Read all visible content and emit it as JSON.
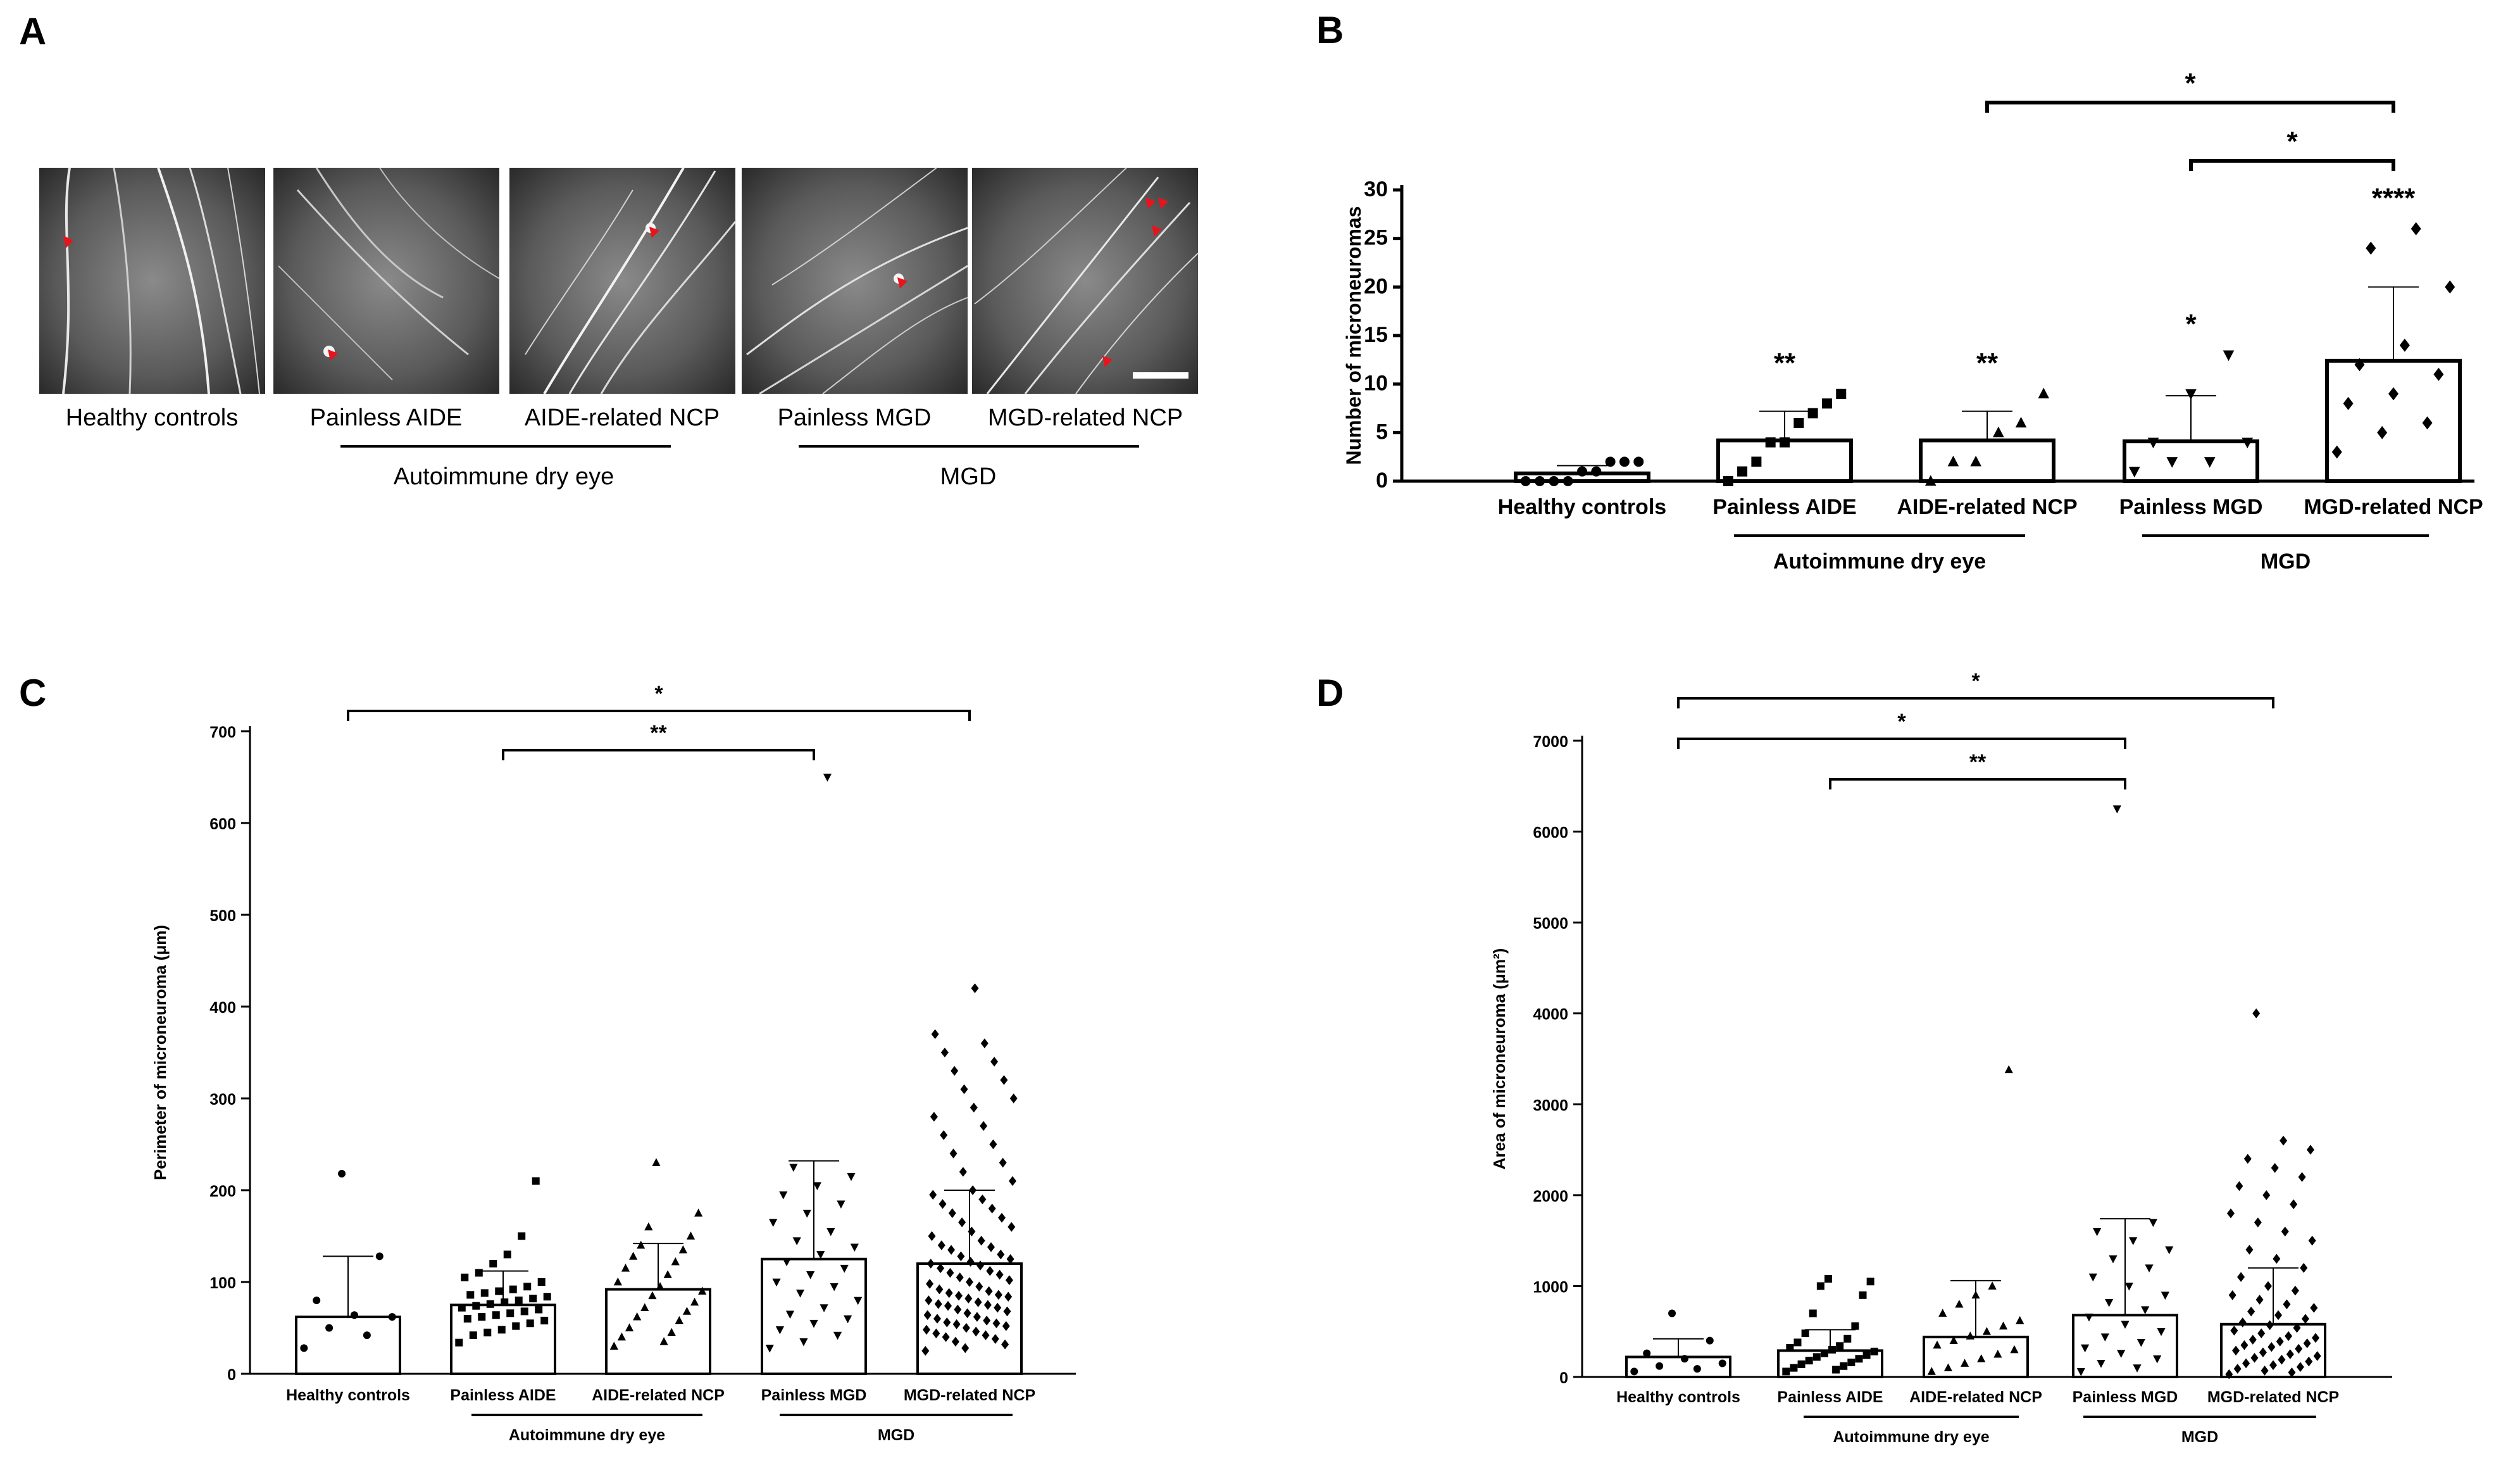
{
  "panel_labels": [
    "A",
    "B",
    "C",
    "D"
  ],
  "panel_a": {
    "labels": [
      "Healthy controls",
      "Painless AIDE",
      "AIDE-related NCP",
      "Painless MGD",
      "MGD-related NCP"
    ],
    "group_labels": [
      "Autoimmune dry eye",
      "MGD"
    ]
  },
  "chart_data": [
    {
      "panel": "B",
      "type": "bar",
      "title": "",
      "xlabel": "",
      "ylabel": "Number of microneuromas",
      "ylim": [
        0,
        30
      ],
      "yticks": [
        0,
        5,
        10,
        15,
        20,
        25,
        30
      ],
      "categories": [
        "Healthy controls",
        "Painless AIDE",
        "AIDE-related NCP",
        "Painless MGD",
        "MGD-related NCP"
      ],
      "group_labels": [
        "Autoimmune dry eye",
        "MGD"
      ],
      "values": [
        0.8,
        4.2,
        4.2,
        4.1,
        12.4
      ],
      "sd_upper": [
        1.6,
        7.2,
        7.2,
        8.8,
        20.0
      ],
      "markers": [
        "circle",
        "square",
        "triangle",
        "triangle-down",
        "diamond"
      ],
      "points": [
        [
          0,
          0,
          0,
          0,
          1,
          1,
          2,
          2,
          2
        ],
        [
          0,
          1,
          2,
          4,
          4,
          6,
          7,
          8,
          9
        ],
        [
          0,
          2,
          2,
          5,
          6,
          9
        ],
        [
          1,
          2,
          2,
          4,
          4,
          9,
          13
        ],
        [
          3,
          5,
          6,
          8,
          9,
          11,
          12,
          14,
          20,
          24,
          26
        ]
      ],
      "point_stars": [
        "",
        "**",
        "**",
        "*",
        "****"
      ],
      "comparisons": [
        {
          "from": 2,
          "to": 4,
          "label": "*"
        },
        {
          "from": 3,
          "to": 4,
          "label": "*"
        }
      ]
    },
    {
      "panel": "C",
      "type": "bar",
      "title": "",
      "xlabel": "",
      "ylabel": "Perimeter of microneuroma (μm)",
      "ylim": [
        0,
        700
      ],
      "yticks": [
        0,
        100,
        200,
        300,
        400,
        500,
        600,
        700
      ],
      "categories": [
        "Healthy controls",
        "Painless AIDE",
        "AIDE-related NCP",
        "Painless MGD",
        "MGD-related NCP"
      ],
      "group_labels": [
        "Autoimmune dry eye",
        "MGD"
      ],
      "values": [
        62,
        75,
        92,
        125,
        120
      ],
      "sd_upper": [
        128,
        112,
        142,
        232,
        200
      ],
      "markers": [
        "circle",
        "square",
        "triangle",
        "triangle-down",
        "diamond"
      ],
      "comparisons": [
        {
          "from": 0,
          "to": 4,
          "label": "*"
        },
        {
          "from": 1,
          "to": 3,
          "label": "**"
        }
      ],
      "points": [
        [
          28,
          42,
          50,
          62,
          64,
          80,
          128,
          218
        ],
        [
          34,
          42,
          45,
          48,
          52,
          55,
          58,
          60,
          62,
          64,
          66,
          68,
          70,
          72,
          74,
          76,
          78,
          80,
          82,
          84,
          86,
          88,
          90,
          92,
          95,
          100,
          105,
          110,
          120,
          130,
          150,
          210
        ],
        [
          30,
          35,
          40,
          45,
          50,
          58,
          62,
          68,
          72,
          78,
          85,
          90,
          95,
          100,
          108,
          115,
          122,
          128,
          135,
          140,
          150,
          160,
          175,
          230
        ],
        [
          28,
          35,
          42,
          48,
          55,
          60,
          65,
          72,
          80,
          88,
          95,
          100,
          108,
          115,
          122,
          130,
          138,
          145,
          155,
          165,
          175,
          185,
          195,
          205,
          215,
          225,
          650
        ],
        [
          25,
          28,
          32,
          35,
          38,
          40,
          42,
          44,
          46,
          48,
          50,
          52,
          54,
          55,
          56,
          58,
          60,
          62,
          64,
          66,
          68,
          70,
          72,
          74,
          75,
          76,
          78,
          80,
          82,
          84,
          85,
          86,
          88,
          90,
          92,
          95,
          98,
          100,
          102,
          105,
          108,
          110,
          112,
          115,
          118,
          120,
          122,
          125,
          128,
          130,
          135,
          138,
          140,
          145,
          150,
          155,
          160,
          165,
          170,
          175,
          180,
          185,
          190,
          195,
          200,
          210,
          220,
          230,
          240,
          250,
          260,
          270,
          280,
          290,
          300,
          310,
          320,
          330,
          340,
          350,
          360,
          370,
          420
        ]
      ]
    },
    {
      "panel": "D",
      "type": "bar",
      "title": "",
      "xlabel": "",
      "ylabel": "Area of microneuroma (μm²)",
      "ylim": [
        0,
        7000
      ],
      "yticks": [
        0,
        1000,
        2000,
        3000,
        4000,
        5000,
        6000,
        7000
      ],
      "categories": [
        "Healthy controls",
        "Painless AIDE",
        "AIDE-related NCP",
        "Painless MGD",
        "MGD-related NCP"
      ],
      "group_labels": [
        "Autoimmune dry eye",
        "MGD"
      ],
      "values": [
        220,
        290,
        440,
        680,
        580
      ],
      "sd_upper": [
        420,
        520,
        1060,
        1740,
        1200
      ],
      "markers": [
        "circle",
        "square",
        "triangle",
        "triangle-down",
        "diamond"
      ],
      "comparisons": [
        {
          "from": 0,
          "to": 4,
          "label": "*"
        },
        {
          "from": 0,
          "to": 3,
          "label": "*"
        },
        {
          "from": 1,
          "to": 3,
          "label": "**"
        }
      ],
      "points": [
        [
          60,
          90,
          120,
          150,
          200,
          260,
          400,
          700
        ],
        [
          60,
          80,
          100,
          120,
          140,
          160,
          180,
          200,
          220,
          240,
          260,
          280,
          300,
          320,
          340,
          380,
          420,
          480,
          560,
          700,
          900,
          1000,
          1050,
          1080
        ],
        [
          60,
          100,
          150,
          200,
          250,
          300,
          350,
          400,
          450,
          500,
          560,
          620,
          700,
          800,
          900,
          1000,
          3380
        ],
        [
          60,
          100,
          150,
          200,
          260,
          320,
          380,
          440,
          500,
          580,
          660,
          740,
          820,
          900,
          1000,
          1100,
          1200,
          1300,
          1400,
          1500,
          1600,
          1700,
          6250
        ],
        [
          30,
          50,
          70,
          90,
          110,
          130,
          150,
          170,
          190,
          210,
          230,
          250,
          270,
          290,
          310,
          330,
          350,
          370,
          390,
          410,
          430,
          450,
          480,
          510,
          540,
          570,
          600,
          640,
          680,
          720,
          760,
          800,
          850,
          900,
          950,
          1000,
          1100,
          1200,
          1300,
          1400,
          1500,
          1600,
          1700,
          1800,
          1900,
          2000,
          2100,
          2200,
          2300,
          2400,
          2500,
          2600,
          4000
        ]
      ]
    }
  ]
}
